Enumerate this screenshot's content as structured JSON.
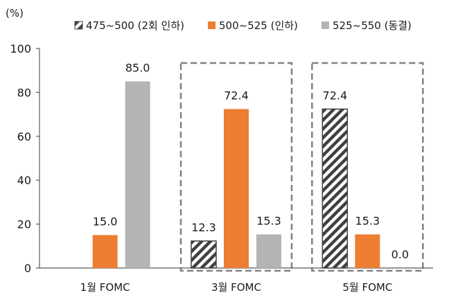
{
  "chart_data": {
    "type": "bar",
    "unit_label": "(%)",
    "categories": [
      "1월 FOMC",
      "3월 FOMC",
      "5월 FOMC"
    ],
    "series": [
      {
        "name": "475~500 (2회 인하)",
        "values": [
          null,
          12.3,
          72.4
        ],
        "labels": [
          "",
          "12.3",
          "72.4"
        ],
        "color": "#404040",
        "pattern": "hatch"
      },
      {
        "name": "500~525 (인하)",
        "values": [
          15.0,
          72.4,
          15.3
        ],
        "labels": [
          "15.0",
          "72.4",
          "15.3"
        ],
        "color": "#ed7d31",
        "pattern": "solid"
      },
      {
        "name": "525~550 (동결)",
        "values": [
          85.0,
          15.3,
          0.0
        ],
        "labels": [
          "85.0",
          "15.3",
          "0.0"
        ],
        "color": "#b4b4b4",
        "pattern": "solid"
      }
    ],
    "y_ticks": [
      "0",
      "20",
      "40",
      "60",
      "80",
      "100"
    ],
    "ylim": [
      0,
      100
    ],
    "legend_position": "top",
    "highlight_boxes": [
      "3월 FOMC",
      "5월 FOMC"
    ],
    "highlight_color": "#808080",
    "grid": false
  }
}
